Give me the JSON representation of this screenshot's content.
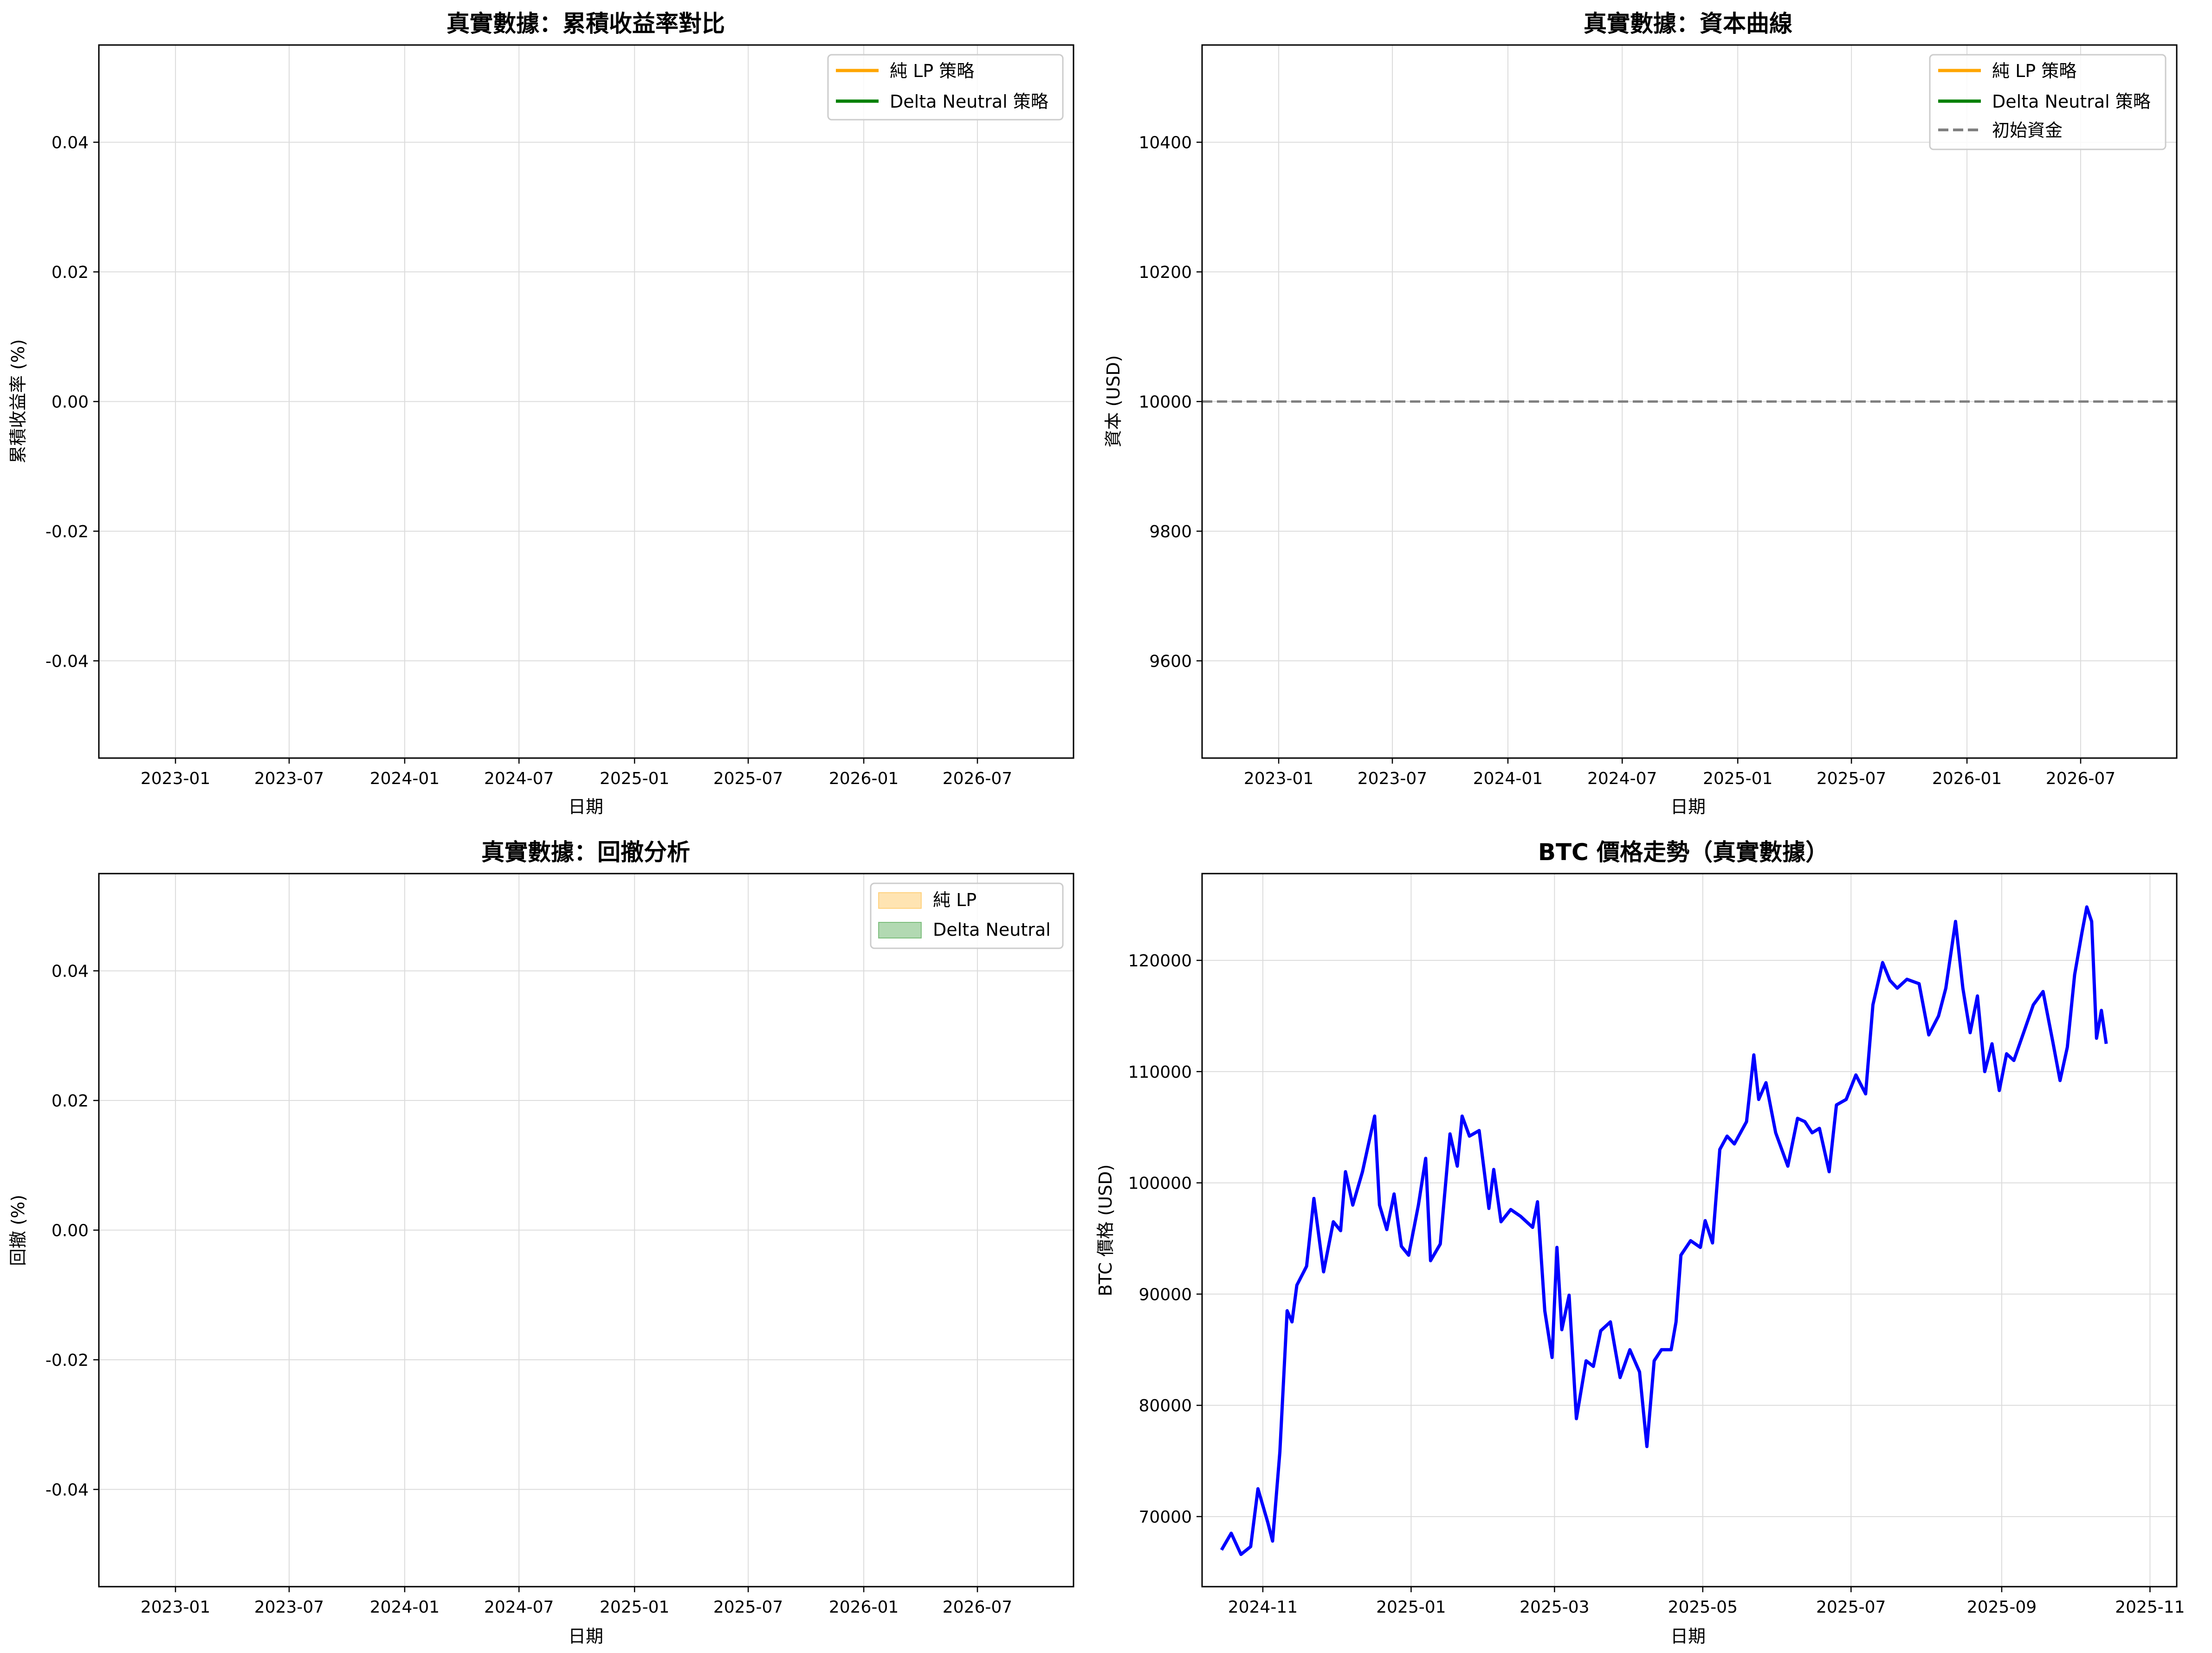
{
  "chart_data": [
    {
      "id": "cum",
      "type": "line",
      "title": "真實數據：累積收益率對比",
      "xlabel": "日期",
      "ylabel": "累積收益率 (%)",
      "xticks": [
        "2023-01",
        "2023-07",
        "2024-01",
        "2024-07",
        "2025-01",
        "2025-07",
        "2026-01",
        "2026-07"
      ],
      "yticks": [
        "0.04",
        "0.02",
        "0.00",
        "-0.02",
        "-0.04"
      ],
      "xlim": [
        "2022-09",
        "2026-12"
      ],
      "ylim": [
        -0.055,
        0.055
      ],
      "grid": true,
      "legend_position": "upper right",
      "series": [
        {
          "name": "純 LP 策略",
          "color": "#ffa500",
          "style": "solid",
          "values": []
        },
        {
          "name": "Delta Neutral 策略",
          "color": "#008000",
          "style": "solid",
          "values": []
        }
      ]
    },
    {
      "id": "equity",
      "type": "line",
      "title": "真實數據：資本曲線",
      "xlabel": "日期",
      "ylabel": "資本 (USD)",
      "xticks": [
        "2023-01",
        "2023-07",
        "2024-01",
        "2024-07",
        "2025-01",
        "2025-07",
        "2026-01",
        "2026-07"
      ],
      "yticks": [
        "10400",
        "10200",
        "10000",
        "9800",
        "9600"
      ],
      "xlim": [
        "2022-09",
        "2026-12"
      ],
      "ylim": [
        9450,
        10550
      ],
      "grid": true,
      "legend_position": "upper right",
      "series": [
        {
          "name": "純 LP 策略",
          "color": "#ffa500",
          "style": "solid",
          "values": []
        },
        {
          "name": "Delta Neutral 策略",
          "color": "#008000",
          "style": "solid",
          "values": []
        },
        {
          "name": "初始資金",
          "color": "#808080",
          "style": "dashed",
          "value": 10000
        }
      ]
    },
    {
      "id": "drawdown",
      "type": "area",
      "title": "真實數據：回撤分析",
      "xlabel": "日期",
      "ylabel": "回撤 (%)",
      "xticks": [
        "2023-01",
        "2023-07",
        "2024-01",
        "2024-07",
        "2025-01",
        "2025-07",
        "2026-01",
        "2026-07"
      ],
      "yticks": [
        "0.04",
        "0.02",
        "0.00",
        "-0.02",
        "-0.04"
      ],
      "xlim": [
        "2022-09",
        "2026-12"
      ],
      "ylim": [
        -0.055,
        0.055
      ],
      "grid": true,
      "legend_position": "upper right",
      "series": [
        {
          "name": "純 LP",
          "color": "#ffa500",
          "style": "fill",
          "values": []
        },
        {
          "name": "Delta Neutral",
          "color": "#008000",
          "style": "fill",
          "values": []
        }
      ]
    },
    {
      "id": "btc",
      "type": "line",
      "title": "BTC 價格走勢（真實數據）",
      "xlabel": "日期",
      "ylabel": "BTC 價格 (USD)",
      "xticks": [
        "2024-11",
        "2025-01",
        "2025-03",
        "2025-05",
        "2025-07",
        "2025-09",
        "2025-11"
      ],
      "yticks": [
        "120000",
        "110000",
        "100000",
        "90000",
        "80000",
        "70000"
      ],
      "xlim": [
        "2024-10-07",
        "2025-11-12"
      ],
      "ylim": [
        63700,
        127800
      ],
      "grid": true,
      "color": "#0000ff",
      "series": [
        {
          "values": [
            [
              "2024-10-15",
              67000
            ],
            [
              "2024-10-19",
              68500
            ],
            [
              "2024-10-23",
              66600
            ],
            [
              "2024-10-27",
              67300
            ],
            [
              "2024-10-30",
              72500
            ],
            [
              "2024-11-03",
              69500
            ],
            [
              "2024-11-05",
              67800
            ],
            [
              "2024-11-08",
              75800
            ],
            [
              "2024-11-11",
              88500
            ],
            [
              "2024-11-13",
              87500
            ],
            [
              "2024-11-15",
              90800
            ],
            [
              "2024-11-19",
              92500
            ],
            [
              "2024-11-22",
              98600
            ],
            [
              "2024-11-26",
              92000
            ],
            [
              "2024-11-30",
              96500
            ],
            [
              "2024-12-03",
              95700
            ],
            [
              "2024-12-05",
              101000
            ],
            [
              "2024-12-08",
              98000
            ],
            [
              "2024-12-12",
              101000
            ],
            [
              "2024-12-15",
              104000
            ],
            [
              "2024-12-17",
              106000
            ],
            [
              "2024-12-19",
              98000
            ],
            [
              "2024-12-22",
              95800
            ],
            [
              "2024-12-25",
              99000
            ],
            [
              "2024-12-28",
              94300
            ],
            [
              "2024-12-31",
              93500
            ],
            [
              "2025-01-04",
              98000
            ],
            [
              "2025-01-07",
              102200
            ],
            [
              "2025-01-09",
              93000
            ],
            [
              "2025-01-13",
              94500
            ],
            [
              "2025-01-17",
              104400
            ],
            [
              "2025-01-20",
              101500
            ],
            [
              "2025-01-22",
              106000
            ],
            [
              "2025-01-25",
              104200
            ],
            [
              "2025-01-29",
              104700
            ],
            [
              "2025-02-02",
              97700
            ],
            [
              "2025-02-04",
              101200
            ],
            [
              "2025-02-07",
              96500
            ],
            [
              "2025-02-11",
              97600
            ],
            [
              "2025-02-15",
              97000
            ],
            [
              "2025-02-20",
              96000
            ],
            [
              "2025-02-22",
              98300
            ],
            [
              "2025-02-25",
              88500
            ],
            [
              "2025-02-28",
              84300
            ],
            [
              "2025-03-02",
              94200
            ],
            [
              "2025-03-04",
              86800
            ],
            [
              "2025-03-07",
              89900
            ],
            [
              "2025-03-10",
              78800
            ],
            [
              "2025-03-14",
              84000
            ],
            [
              "2025-03-17",
              83500
            ],
            [
              "2025-03-20",
              86700
            ],
            [
              "2025-03-24",
              87500
            ],
            [
              "2025-03-28",
              82500
            ],
            [
              "2025-04-01",
              85000
            ],
            [
              "2025-04-05",
              83000
            ],
            [
              "2025-04-08",
              76300
            ],
            [
              "2025-04-11",
              84000
            ],
            [
              "2025-04-14",
              85000
            ],
            [
              "2025-04-18",
              85000
            ],
            [
              "2025-04-20",
              87500
            ],
            [
              "2025-04-22",
              93500
            ],
            [
              "2025-04-26",
              94800
            ],
            [
              "2025-04-30",
              94200
            ],
            [
              "2025-05-02",
              96600
            ],
            [
              "2025-05-05",
              94600
            ],
            [
              "2025-05-08",
              103000
            ],
            [
              "2025-05-11",
              104200
            ],
            [
              "2025-05-14",
              103500
            ],
            [
              "2025-05-19",
              105500
            ],
            [
              "2025-05-22",
              111500
            ],
            [
              "2025-05-24",
              107500
            ],
            [
              "2025-05-27",
              109000
            ],
            [
              "2025-05-31",
              104500
            ],
            [
              "2025-06-05",
              101500
            ],
            [
              "2025-06-09",
              105800
            ],
            [
              "2025-06-12",
              105500
            ],
            [
              "2025-06-15",
              104500
            ],
            [
              "2025-06-18",
              104900
            ],
            [
              "2025-06-22",
              101000
            ],
            [
              "2025-06-25",
              107000
            ],
            [
              "2025-06-29",
              107500
            ],
            [
              "2025-07-03",
              109700
            ],
            [
              "2025-07-07",
              108000
            ],
            [
              "2025-07-10",
              116000
            ],
            [
              "2025-07-14",
              119800
            ],
            [
              "2025-07-17",
              118200
            ],
            [
              "2025-07-20",
              117500
            ],
            [
              "2025-07-24",
              118300
            ],
            [
              "2025-07-29",
              117900
            ],
            [
              "2025-08-02",
              113300
            ],
            [
              "2025-08-06",
              115000
            ],
            [
              "2025-08-09",
              117500
            ],
            [
              "2025-08-13",
              123500
            ],
            [
              "2025-08-16",
              117500
            ],
            [
              "2025-08-19",
              113500
            ],
            [
              "2025-08-22",
              116800
            ],
            [
              "2025-08-25",
              110000
            ],
            [
              "2025-08-28",
              112500
            ],
            [
              "2025-08-31",
              108300
            ],
            [
              "2025-09-03",
              111600
            ],
            [
              "2025-09-06",
              111000
            ],
            [
              "2025-09-10",
              113500
            ],
            [
              "2025-09-14",
              116000
            ],
            [
              "2025-09-18",
              117200
            ],
            [
              "2025-09-22",
              112700
            ],
            [
              "2025-09-25",
              109200
            ],
            [
              "2025-09-28",
              112200
            ],
            [
              "2025-10-01",
              118700
            ],
            [
              "2025-10-04",
              122500
            ],
            [
              "2025-10-06",
              124800
            ],
            [
              "2025-10-08",
              123500
            ],
            [
              "2025-10-10",
              113000
            ],
            [
              "2025-10-12",
              115500
            ],
            [
              "2025-10-14",
              112500
            ]
          ]
        }
      ]
    }
  ]
}
